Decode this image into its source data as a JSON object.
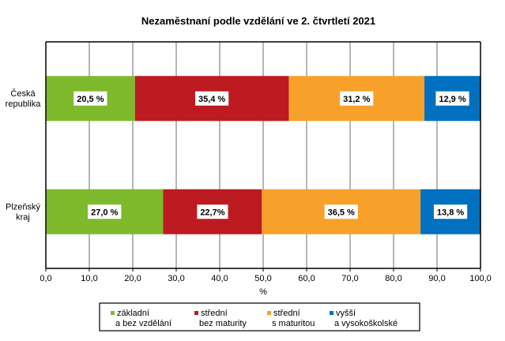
{
  "chart_data": {
    "type": "bar",
    "orientation": "horizontal",
    "stacked": true,
    "title": "Nezaměstnaní podle vzdělání ve 2. čtvrtletí 2021",
    "xlabel": "%",
    "ylabel": "",
    "xlim": [
      0,
      100
    ],
    "grid": true,
    "categories": [
      {
        "lines": [
          "Česká",
          "republika"
        ]
      },
      {
        "lines": [
          "Plzeňský",
          "kraj"
        ]
      }
    ],
    "ticks": [
      "0,0",
      "10,0",
      "20,0",
      "30,0",
      "40,0",
      "50,0",
      "60,0",
      "70,0",
      "80,0",
      "90,0",
      "100,0"
    ],
    "tick_values": [
      0,
      10,
      20,
      30,
      40,
      50,
      60,
      70,
      80,
      90,
      100
    ],
    "series": [
      {
        "name_lines": [
          "základní",
          "a bez vzdělání"
        ],
        "color": "#7fba2d",
        "values": [
          20.5,
          27.0
        ],
        "labels": [
          "20,5 %",
          "27,0 %"
        ]
      },
      {
        "name_lines": [
          "střední",
          "bez maturity"
        ],
        "color": "#be1a22",
        "values": [
          35.4,
          22.7
        ],
        "labels": [
          "35,4 %",
          "22,7%"
        ]
      },
      {
        "name_lines": [
          "střední",
          "s maturitou"
        ],
        "color": "#f7a12a",
        "values": [
          31.2,
          36.5
        ],
        "labels": [
          "31,2 %",
          "36,5 %"
        ]
      },
      {
        "name_lines": [
          "vyšší",
          "a vysokoškolské"
        ],
        "color": "#0070c0",
        "values": [
          12.9,
          13.8
        ],
        "labels": [
          "12,9 %",
          "13,8 %"
        ]
      }
    ],
    "legend": "bottom"
  }
}
